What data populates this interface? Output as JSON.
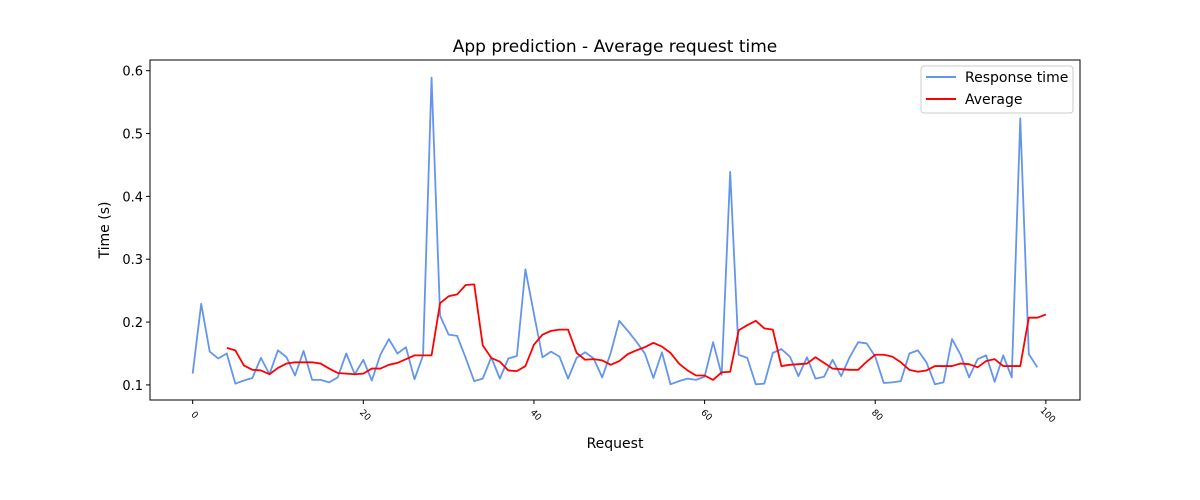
{
  "chart_data": {
    "type": "line",
    "title": "App prediction - Average request time",
    "xlabel": "Request",
    "ylabel": "Time (s)",
    "xlim": [
      -5,
      104
    ],
    "ylim": [
      0.076,
      0.617
    ],
    "xticks": [
      0,
      20,
      40,
      60,
      80,
      100
    ],
    "yticks": [
      0.1,
      0.2,
      0.3,
      0.4,
      0.5,
      0.6
    ],
    "ytick_labels": [
      "0.1",
      "0.2",
      "0.3",
      "0.4",
      "0.5",
      "0.6"
    ],
    "grid": false,
    "legend_position": "top-right",
    "series": [
      {
        "name": "Response time",
        "color": "#6495ed",
        "x_start": 0,
        "values": [
          0.118,
          0.229,
          0.153,
          0.142,
          0.15,
          0.102,
          0.107,
          0.111,
          0.143,
          0.117,
          0.155,
          0.144,
          0.115,
          0.154,
          0.108,
          0.108,
          0.104,
          0.112,
          0.15,
          0.117,
          0.14,
          0.107,
          0.148,
          0.173,
          0.15,
          0.16,
          0.109,
          0.147,
          0.589,
          0.21,
          0.18,
          0.178,
          0.143,
          0.106,
          0.11,
          0.144,
          0.11,
          0.142,
          0.146,
          0.284,
          0.213,
          0.144,
          0.153,
          0.145,
          0.11,
          0.143,
          0.152,
          0.142,
          0.112,
          0.151,
          0.202,
          0.186,
          0.169,
          0.15,
          0.111,
          0.152,
          0.101,
          0.106,
          0.11,
          0.108,
          0.113,
          0.168,
          0.116,
          0.439,
          0.148,
          0.143,
          0.101,
          0.102,
          0.151,
          0.157,
          0.145,
          0.114,
          0.144,
          0.11,
          0.113,
          0.14,
          0.114,
          0.144,
          0.168,
          0.166,
          0.145,
          0.103,
          0.104,
          0.106,
          0.15,
          0.155,
          0.136,
          0.101,
          0.104,
          0.173,
          0.148,
          0.112,
          0.141,
          0.147,
          0.105,
          0.147,
          0.112,
          0.524,
          0.149,
          0.128
        ]
      },
      {
        "name": "Average",
        "color": "#ff0000",
        "x_start": 4,
        "values": [
          0.159,
          0.155,
          0.131,
          0.124,
          0.123,
          0.117,
          0.127,
          0.134,
          0.136,
          0.136,
          0.136,
          0.134,
          0.126,
          0.119,
          0.118,
          0.117,
          0.118,
          0.126,
          0.126,
          0.132,
          0.135,
          0.141,
          0.147,
          0.147,
          0.147,
          0.23,
          0.241,
          0.244,
          0.259,
          0.26,
          0.163,
          0.143,
          0.137,
          0.123,
          0.122,
          0.13,
          0.164,
          0.18,
          0.186,
          0.188,
          0.188,
          0.151,
          0.14,
          0.141,
          0.139,
          0.132,
          0.138,
          0.149,
          0.155,
          0.16,
          0.167,
          0.161,
          0.151,
          0.134,
          0.123,
          0.115,
          0.115,
          0.108,
          0.12,
          0.121,
          0.187,
          0.195,
          0.202,
          0.19,
          0.188,
          0.13,
          0.132,
          0.133,
          0.134,
          0.144,
          0.135,
          0.126,
          0.125,
          0.124,
          0.124,
          0.137,
          0.148,
          0.148,
          0.145,
          0.136,
          0.124,
          0.121,
          0.123,
          0.13,
          0.13,
          0.13,
          0.134,
          0.133,
          0.128,
          0.138,
          0.141,
          0.13,
          0.13,
          0.13,
          0.207,
          0.207,
          0.212
        ]
      }
    ]
  }
}
